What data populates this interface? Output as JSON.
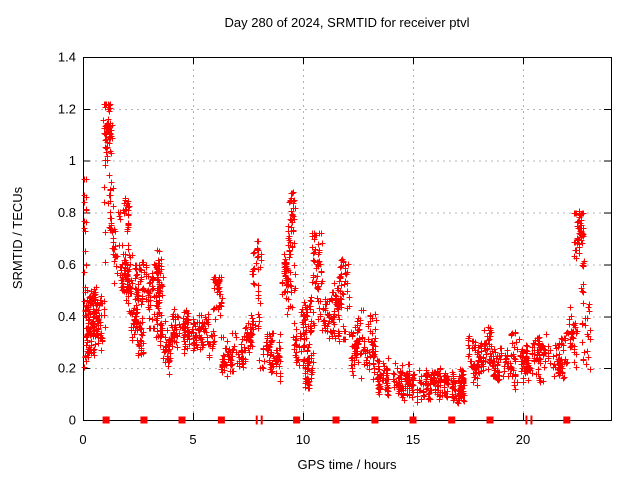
{
  "chart_data": {
    "type": "scatter",
    "title": "Day 280 of 2024, SRMTID for receiver ptvl",
    "xlabel": "GPS time / hours",
    "ylabel": "SRMTID / TECUs",
    "xlim": [
      0,
      24
    ],
    "ylim": [
      0,
      1.4
    ],
    "xticks": [
      0,
      5,
      10,
      15,
      20
    ],
    "xtick_labels": [
      "0",
      "5",
      "10",
      "15",
      "20"
    ],
    "yticks": [
      0,
      0.2,
      0.4,
      0.6,
      0.8,
      1,
      1.2,
      1.4
    ],
    "ytick_labels": [
      "0",
      "0.2",
      "0.4",
      "0.6",
      "0.8",
      "1",
      "1.2",
      "1.4"
    ],
    "grid": true,
    "legend": "none",
    "marker": "plus",
    "marker_color": "#ff0000",
    "grid_color": "#b3b3b3",
    "axis_color": "#000000",
    "background": "#ffffff",
    "seed": 280,
    "cluster_fields": "[x_start_hours, x_end_hours, y_min_tecu, y_max_tecu, n_points, mode(0=band,1=uniform,2=spike_top_biased)]",
    "point_clusters": [
      [
        0.02,
        0.15,
        0.2,
        0.93,
        14,
        1
      ],
      [
        0.1,
        0.95,
        0.22,
        0.52,
        140,
        0
      ],
      [
        0.3,
        0.65,
        0.42,
        0.52,
        20,
        0
      ],
      [
        0.95,
        1.35,
        0.45,
        1.22,
        55,
        2
      ],
      [
        1.05,
        1.3,
        1.0,
        1.22,
        25,
        0
      ],
      [
        1.35,
        1.7,
        0.5,
        0.9,
        22,
        1
      ],
      [
        1.75,
        2.2,
        0.4,
        0.7,
        70,
        0
      ],
      [
        1.82,
        2.05,
        0.72,
        0.87,
        22,
        0
      ],
      [
        2.2,
        2.45,
        0.3,
        0.5,
        30,
        0
      ],
      [
        2.36,
        2.85,
        0.42,
        0.63,
        45,
        0
      ],
      [
        2.45,
        2.75,
        0.25,
        0.4,
        25,
        1
      ],
      [
        2.9,
        3.64,
        0.4,
        0.66,
        80,
        0
      ],
      [
        2.9,
        3.64,
        0.28,
        0.42,
        30,
        1
      ],
      [
        3.64,
        3.97,
        0.15,
        0.45,
        35,
        0
      ],
      [
        3.97,
        5.3,
        0.24,
        0.45,
        110,
        0
      ],
      [
        5.3,
        5.95,
        0.24,
        0.42,
        50,
        0
      ],
      [
        5.95,
        6.3,
        0.3,
        0.55,
        40,
        2
      ],
      [
        6.3,
        7.4,
        0.16,
        0.35,
        85,
        0
      ],
      [
        7.4,
        7.75,
        0.22,
        0.42,
        35,
        0
      ],
      [
        7.7,
        8.05,
        0.33,
        0.7,
        32,
        2
      ],
      [
        8.05,
        9.0,
        0.13,
        0.36,
        75,
        0
      ],
      [
        9.0,
        9.3,
        0.3,
        0.64,
        35,
        2
      ],
      [
        9.3,
        9.62,
        0.35,
        0.88,
        40,
        2
      ],
      [
        9.38,
        9.58,
        0.7,
        0.88,
        12,
        1
      ],
      [
        9.6,
        10.15,
        0.14,
        0.48,
        55,
        0
      ],
      [
        9.95,
        10.45,
        0.08,
        0.3,
        45,
        0
      ],
      [
        10.15,
        10.45,
        0.3,
        0.5,
        20,
        0
      ],
      [
        10.45,
        10.9,
        0.32,
        0.72,
        55,
        2
      ],
      [
        10.9,
        11.65,
        0.28,
        0.55,
        70,
        0
      ],
      [
        11.65,
        12.05,
        0.28,
        0.62,
        40,
        2
      ],
      [
        12.05,
        12.65,
        0.14,
        0.42,
        50,
        0
      ],
      [
        12.65,
        13.35,
        0.12,
        0.45,
        55,
        0
      ],
      [
        13.35,
        14.95,
        0.07,
        0.25,
        130,
        0
      ],
      [
        14.95,
        17.45,
        0.05,
        0.22,
        210,
        0
      ],
      [
        17.45,
        18.05,
        0.1,
        0.35,
        50,
        0
      ],
      [
        18.05,
        18.65,
        0.17,
        0.37,
        55,
        0
      ],
      [
        18.65,
        19.25,
        0.12,
        0.3,
        45,
        0
      ],
      [
        19.25,
        20.05,
        0.1,
        0.38,
        55,
        0
      ],
      [
        20.05,
        21.05,
        0.13,
        0.33,
        70,
        0
      ],
      [
        20.6,
        21.0,
        0.22,
        0.38,
        18,
        0
      ],
      [
        21.05,
        21.95,
        0.14,
        0.33,
        55,
        0
      ],
      [
        21.95,
        22.4,
        0.18,
        0.45,
        35,
        0
      ],
      [
        22.35,
        22.75,
        0.45,
        0.8,
        40,
        2
      ],
      [
        22.45,
        22.65,
        0.7,
        0.8,
        16,
        1
      ],
      [
        22.65,
        23.1,
        0.18,
        0.45,
        22,
        1
      ]
    ],
    "notable_points": [
      [
        0.05,
        0.93
      ],
      [
        0.05,
        0.84
      ],
      [
        0.06,
        0.74
      ],
      [
        0.07,
        0.65
      ],
      [
        0.04,
        0.57
      ],
      [
        1.17,
        1.215
      ],
      [
        1.2,
        1.19
      ],
      [
        1.14,
        1.16
      ],
      [
        3.35,
        0.655
      ],
      [
        7.9,
        0.69
      ],
      [
        9.45,
        0.875
      ],
      [
        9.42,
        0.845
      ],
      [
        10.55,
        0.715
      ],
      [
        11.8,
        0.615
      ],
      [
        22.55,
        0.805
      ],
      [
        22.6,
        0.79
      ],
      [
        22.65,
        0.77
      ]
    ],
    "event_markers": {
      "description": "red squares along y=0 axis",
      "square_x": [
        1.05,
        2.77,
        4.5,
        6.29,
        9.71,
        11.5,
        13.27,
        15.0,
        16.76,
        18.5,
        21.99
      ],
      "double_bar_x": [
        8.01,
        20.27
      ],
      "y": 0,
      "color": "#ff0000"
    }
  }
}
